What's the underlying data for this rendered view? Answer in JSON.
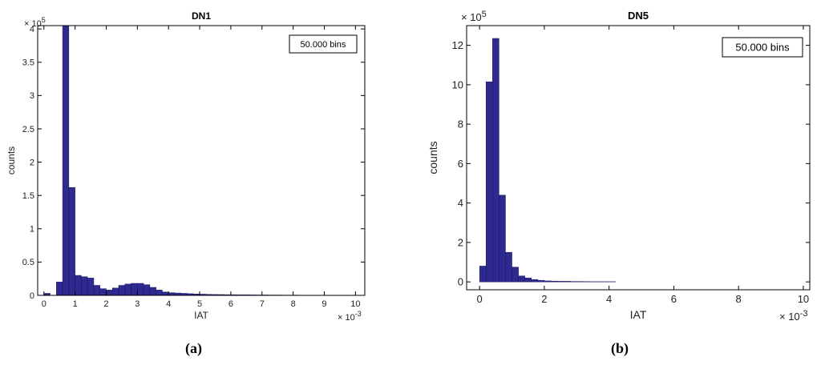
{
  "captions": [
    "(a)",
    "(b)"
  ],
  "colors": {
    "bar": "#2e2a8f",
    "bar_edge": "#17145c",
    "axes": "#000000"
  },
  "chart_data": [
    {
      "type": "bar",
      "title": "DN1",
      "xlabel": "IAT",
      "ylabel": "counts",
      "x_exponent_label": "× 10",
      "x_exponent": "-3",
      "y_exponent_label": "× 10",
      "y_exponent": "5",
      "xlim": [
        -0.2,
        10.3
      ],
      "ylim": [
        0,
        4.05
      ],
      "xticks": [
        0,
        1,
        2,
        3,
        4,
        5,
        6,
        7,
        8,
        9,
        10
      ],
      "xtick_labels": [
        "0",
        "1",
        "2",
        "3",
        "4",
        "5",
        "6",
        "7",
        "8",
        "9",
        "10"
      ],
      "yticks": [
        0,
        0.5,
        1,
        1.5,
        2,
        2.5,
        3,
        3.5,
        4
      ],
      "ytick_labels": [
        "0",
        "0.5",
        "1",
        "1.5",
        "2",
        "2.5",
        "3",
        "3.5",
        "4"
      ],
      "legend_text": "50.000 bins",
      "legend_position": "top-right",
      "bin_width": 0.2,
      "bin_starts": [
        0,
        0.2,
        0.4,
        0.6,
        0.8,
        1.0,
        1.2,
        1.4,
        1.6,
        1.8,
        2.0,
        2.2,
        2.4,
        2.6,
        2.8,
        3.0,
        3.2,
        3.4,
        3.6,
        3.8,
        4.0,
        4.2,
        4.4,
        4.6,
        4.8,
        5.0,
        5.2,
        5.4,
        5.6,
        5.8,
        6.0,
        6.2,
        6.4,
        6.6,
        6.8,
        7.0,
        7.2,
        7.4,
        7.6,
        7.8,
        8.0,
        8.2,
        8.4,
        8.6,
        8.8,
        9.0,
        9.2,
        9.4,
        9.6,
        9.8
      ],
      "values": [
        0.03,
        0.0,
        0.2,
        4.1,
        1.62,
        0.3,
        0.28,
        0.26,
        0.15,
        0.1,
        0.08,
        0.11,
        0.15,
        0.17,
        0.18,
        0.18,
        0.16,
        0.12,
        0.08,
        0.05,
        0.04,
        0.035,
        0.03,
        0.025,
        0.02,
        0.018,
        0.015,
        0.013,
        0.012,
        0.01,
        0.009,
        0.008,
        0.008,
        0.007,
        0.006,
        0.006,
        0.005,
        0.005,
        0.004,
        0.004,
        0.004,
        0.003,
        0.003,
        0.003,
        0.003,
        0.002,
        0.002,
        0.002,
        0.002,
        0.002
      ]
    },
    {
      "type": "bar",
      "title": "DN5",
      "xlabel": "IAT",
      "ylabel": "counts",
      "x_exponent_label": "× 10",
      "x_exponent": "-3",
      "y_exponent_label": "× 10",
      "y_exponent": "5",
      "xlim": [
        -0.4,
        10.2
      ],
      "ylim": [
        -0.4,
        13
      ],
      "xticks": [
        0,
        2,
        4,
        6,
        8,
        10
      ],
      "xtick_labels": [
        "0",
        "2",
        "4",
        "6",
        "8",
        "10"
      ],
      "yticks": [
        0,
        2,
        4,
        6,
        8,
        10,
        12
      ],
      "ytick_labels": [
        "0",
        "2",
        "4",
        "6",
        "8",
        "10",
        "12"
      ],
      "legend_text": "50.000 bins",
      "legend_position": "top-right",
      "bin_width": 0.2,
      "bin_starts": [
        0,
        0.2,
        0.4,
        0.6,
        0.8,
        1.0,
        1.2,
        1.4,
        1.6,
        1.8,
        2.0,
        2.2,
        2.4,
        2.6,
        2.8,
        3.0,
        3.2,
        3.4,
        3.6,
        3.8,
        4.0
      ],
      "values": [
        0.8,
        10.15,
        12.35,
        4.4,
        1.5,
        0.75,
        0.3,
        0.2,
        0.12,
        0.08,
        0.05,
        0.04,
        0.03,
        0.03,
        0.02,
        0.02,
        0.015,
        0.01,
        0.01,
        0.01,
        0.01
      ]
    }
  ]
}
